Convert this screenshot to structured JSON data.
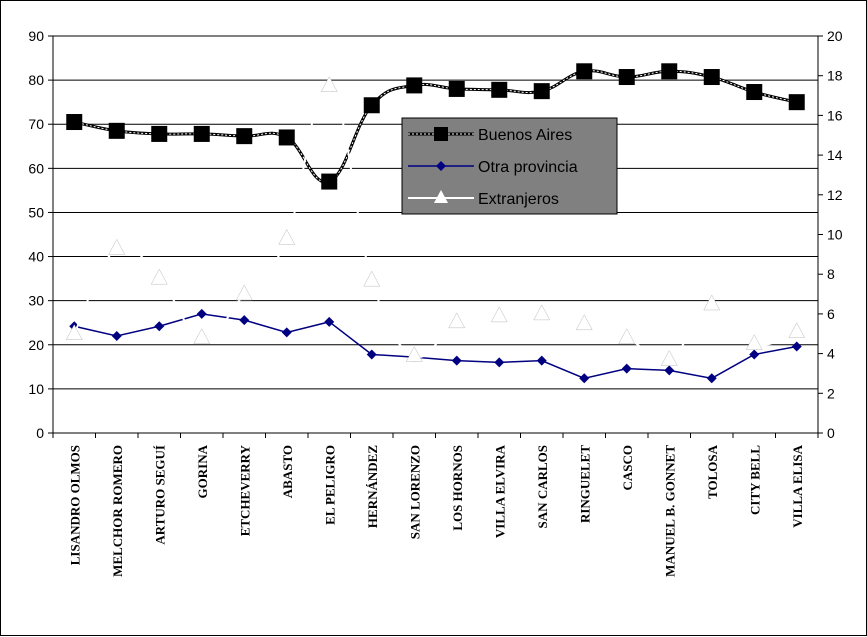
{
  "chart_data": {
    "type": "line",
    "categories": [
      "LISANDRO OLMOS",
      "MELCHOR ROMERO",
      "ARTURO SEGUÍ",
      "GORINA",
      "ETCHEVERRY",
      "ABASTO",
      "EL PELIGRO",
      "HERNÁNDEZ",
      "SAN LORENZO",
      "LOS HORNOS",
      "VILLA ELVIRA",
      "SAN CARLOS",
      "RINGUELET",
      "CASCO",
      "MANUEL B. GONNET",
      "TOLOSA",
      "CITY BELL",
      "VILLA ELISA"
    ],
    "y_left": {
      "range": [
        0,
        90
      ],
      "ticks": [
        "0",
        "10",
        "20",
        "30",
        "40",
        "50",
        "60",
        "70",
        "80",
        "90"
      ]
    },
    "y_right": {
      "range": [
        0,
        20
      ],
      "ticks": [
        "0",
        "2",
        "4",
        "6",
        "8",
        "10",
        "12",
        "14",
        "16",
        "18",
        "20"
      ]
    },
    "grid": true,
    "legend_position": "center-right",
    "series": [
      {
        "name": "Buenos Aires",
        "axis": "left",
        "color": "#000000",
        "marker": "square",
        "values": [
          70.5,
          68.5,
          67.8,
          67.8,
          67.3,
          67.0,
          57.0,
          74.3,
          78.8,
          78.0,
          77.8,
          77.5,
          82.0,
          80.7,
          82.0,
          80.7,
          77.3,
          75.0
        ]
      },
      {
        "name": "Otra provincia",
        "axis": "left",
        "color": "#000080",
        "marker": "diamond",
        "values": [
          24.2,
          22.0,
          24.2,
          27.0,
          25.6,
          22.8,
          25.2,
          17.8,
          17.2,
          16.4,
          16.0,
          16.4,
          12.4,
          14.6,
          14.2,
          12.4,
          17.8,
          19.6
        ]
      },
      {
        "name": "Extranjeros",
        "axis": "right",
        "color": "#ffffff",
        "marker": "triangle",
        "values": [
          5.0,
          9.3,
          7.8,
          4.8,
          7.0,
          9.8,
          17.5,
          7.7,
          3.9,
          5.6,
          5.9,
          6.0,
          5.5,
          4.8,
          3.7,
          6.5,
          4.5,
          5.1
        ]
      }
    ]
  },
  "colors": {
    "plot_background": "#ffffff",
    "gridline": "#000000",
    "legend_background": "#808080"
  }
}
